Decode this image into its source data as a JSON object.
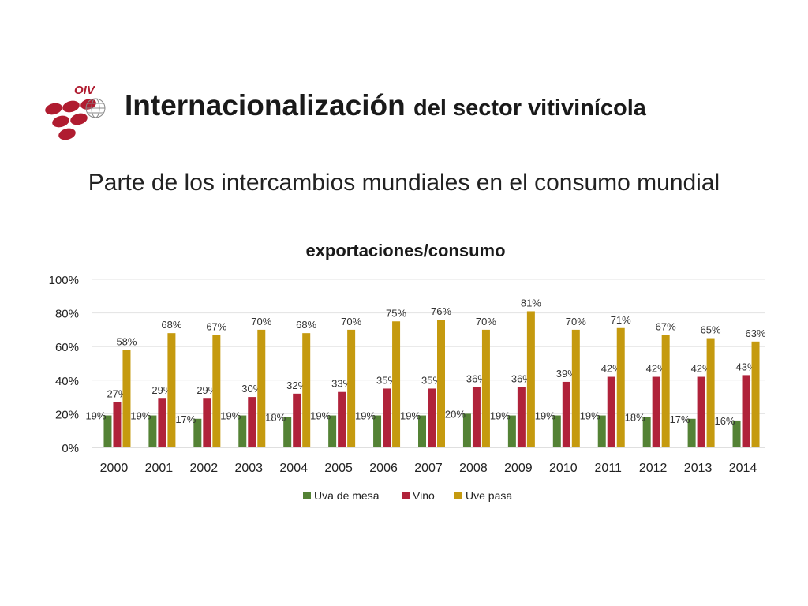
{
  "header": {
    "logo_text": "OIV",
    "title_main": "Internacionalización",
    "title_rest": "del sector vitivinícola"
  },
  "subtitle": "Parte de los intercambios mundiales en el consumo mundial",
  "colors": {
    "uva_de_mesa": "#548235",
    "vino": "#b0223a",
    "uve_pasa": "#c59a0f",
    "logo": "#b01c30"
  },
  "chart_data": {
    "type": "bar",
    "title": "exportaciones/consumo",
    "categories": [
      "2000",
      "2001",
      "2002",
      "2003",
      "2004",
      "2005",
      "2006",
      "2007",
      "2008",
      "2009",
      "2010",
      "2011",
      "2012",
      "2013",
      "2014"
    ],
    "series": [
      {
        "name": "Uva de mesa",
        "values": [
          19,
          19,
          17,
          19,
          18,
          19,
          19,
          19,
          20,
          19,
          19,
          19,
          18,
          17,
          16
        ],
        "labels": [
          "19%",
          "19%",
          "17%",
          "19%",
          "18%",
          "19%",
          "19%",
          "19%",
          "20%",
          "19%",
          "19%",
          "19%",
          "18%",
          "17%",
          "16%"
        ]
      },
      {
        "name": "Vino",
        "values": [
          27,
          29,
          29,
          30,
          32,
          33,
          35,
          35,
          36,
          36,
          39,
          42,
          42,
          42,
          43
        ],
        "labels": [
          "27%",
          "29%",
          "29%",
          "30%",
          "32%",
          "33%",
          "35%",
          "35%",
          "36%",
          "36%",
          "39%",
          "42%",
          "42%",
          "42%",
          "43%"
        ]
      },
      {
        "name": "Uve pasa",
        "values": [
          58,
          68,
          67,
          70,
          68,
          70,
          75,
          76,
          70,
          81,
          70,
          71,
          67,
          65,
          63
        ],
        "labels": [
          "58%",
          "68%",
          "67%",
          "70%",
          "68%",
          "70%",
          "75%",
          "76%",
          "70%",
          "81%",
          "70%",
          "71%",
          "67%",
          "65%",
          "63%"
        ]
      }
    ],
    "ylim": [
      0,
      100
    ],
    "yticks": [
      0,
      20,
      40,
      60,
      80,
      100
    ],
    "ytick_labels": [
      "0%",
      "20%",
      "40%",
      "60%",
      "80%",
      "100%"
    ],
    "grid": true,
    "legend_position": "bottom"
  }
}
